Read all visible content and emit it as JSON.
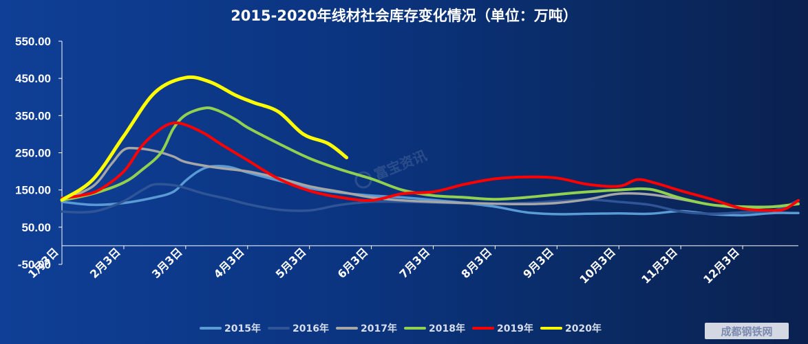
{
  "chart_data": {
    "type": "line",
    "title": "2015-2020年线材社会库存变化情况（单位：万吨）",
    "ylim": [
      -50,
      550
    ],
    "yticks": [
      "550.00",
      "450.00",
      "350.00",
      "250.00",
      "150.00",
      "50.00",
      "-50.00"
    ],
    "ytick_values": [
      550,
      450,
      350,
      250,
      150,
      50,
      -50
    ],
    "xlim": [
      0,
      11.9
    ],
    "categories": [
      "1月3日",
      "2月3日",
      "3月3日",
      "4月3日",
      "5月3日",
      "6月3日",
      "7月3日",
      "8月3日",
      "9月3日",
      "10月3日",
      "11月3日",
      "12月3日"
    ],
    "grid": false,
    "legend_position": "bottom",
    "series": [
      {
        "name": "2015年",
        "color": "#5b9bd5",
        "x": [
          0,
          0.5,
          1.0,
          1.5,
          1.8,
          2.0,
          2.2,
          2.4,
          2.7,
          3.0,
          3.5,
          4.0,
          4.5,
          5.0,
          5.5,
          6.0,
          6.5,
          7.0,
          7.5,
          8.0,
          8.5,
          9.0,
          9.5,
          10.0,
          10.5,
          11.0,
          11.5,
          11.9
        ],
        "y": [
          118,
          110,
          115,
          130,
          145,
          175,
          200,
          213,
          212,
          197,
          175,
          155,
          143,
          135,
          130,
          123,
          115,
          105,
          90,
          85,
          86,
          87,
          86,
          93,
          85,
          82,
          88,
          88
        ]
      },
      {
        "name": "2016年",
        "color": "#2f5597",
        "x": [
          0,
          0.3,
          0.6,
          1.0,
          1.3,
          1.5,
          1.8,
          2.0,
          2.3,
          2.7,
          3.0,
          3.5,
          4.0,
          4.5,
          5.0,
          5.5,
          6.0,
          6.5,
          7.0,
          7.5,
          8.0,
          8.5,
          9.0,
          9.5,
          10.0,
          10.5,
          11.0,
          11.5,
          11.9
        ],
        "y": [
          92,
          90,
          95,
          120,
          150,
          165,
          163,
          155,
          140,
          125,
          112,
          97,
          95,
          110,
          118,
          118,
          116,
          114,
          113,
          115,
          120,
          124,
          118,
          110,
          92,
          86,
          90,
          95,
          122
        ]
      },
      {
        "name": "2017年",
        "color": "#a6a6a6",
        "x": [
          0,
          0.5,
          0.8,
          1.0,
          1.2,
          1.5,
          1.8,
          2.0,
          2.5,
          3.0,
          3.5,
          4.0,
          4.5,
          5.0,
          5.5,
          6.0,
          6.5,
          7.0,
          7.5,
          8.0,
          8.5,
          9.0,
          9.5,
          10.0,
          10.5,
          11.0,
          11.5,
          11.9
        ],
        "y": [
          122,
          160,
          220,
          258,
          262,
          255,
          240,
          225,
          210,
          200,
          182,
          160,
          145,
          130,
          122,
          118,
          115,
          113,
          112,
          115,
          125,
          140,
          138,
          125,
          110,
          102,
          105,
          112
        ]
      },
      {
        "name": "2018年",
        "color": "#92d050",
        "x": [
          0,
          0.5,
          1.0,
          1.3,
          1.6,
          1.8,
          2.0,
          2.3,
          2.5,
          2.8,
          3.0,
          3.5,
          4.0,
          4.5,
          5.0,
          5.5,
          6.0,
          6.5,
          7.0,
          7.5,
          8.0,
          8.5,
          9.0,
          9.5,
          10.0,
          10.5,
          11.0,
          11.5,
          11.9
        ],
        "y": [
          122,
          140,
          170,
          205,
          250,
          315,
          352,
          370,
          365,
          340,
          318,
          275,
          235,
          205,
          180,
          150,
          135,
          130,
          125,
          130,
          138,
          145,
          150,
          152,
          128,
          110,
          105,
          105,
          113
        ]
      },
      {
        "name": "2019年",
        "color": "#ff0000",
        "x": [
          0,
          0.3,
          0.6,
          1.0,
          1.3,
          1.6,
          1.8,
          2.0,
          2.3,
          2.6,
          3.0,
          3.5,
          4.0,
          4.5,
          5.0,
          5.5,
          6.0,
          6.5,
          7.0,
          7.5,
          8.0,
          8.5,
          9.0,
          9.3,
          9.6,
          10.0,
          10.5,
          11.0,
          11.5,
          11.7,
          11.9
        ],
        "y": [
          128,
          135,
          150,
          200,
          270,
          315,
          330,
          325,
          302,
          270,
          230,
          180,
          148,
          130,
          122,
          140,
          145,
          165,
          180,
          185,
          182,
          165,
          160,
          178,
          168,
          148,
          125,
          100,
          95,
          100,
          122
        ]
      },
      {
        "name": "2020年",
        "color": "#ffff00",
        "x": [
          0,
          0.5,
          1.0,
          1.5,
          2.0,
          2.4,
          2.8,
          3.1,
          3.5,
          3.9,
          4.3,
          4.6
        ],
        "y": [
          123,
          178,
          295,
          412,
          452,
          440,
          405,
          385,
          360,
          300,
          275,
          237
        ]
      }
    ]
  },
  "watermark": {
    "text": "富宝资讯"
  },
  "corner_logo": {
    "text": "成都钢铁网"
  }
}
